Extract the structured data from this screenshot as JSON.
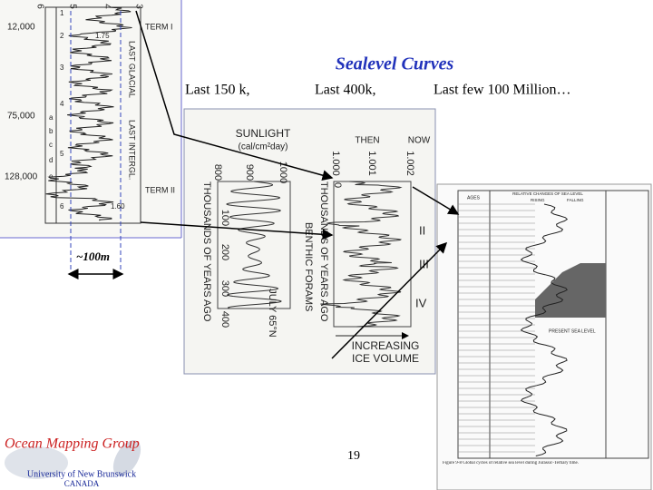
{
  "title": "Sealevel Curves",
  "subtitles": [
    "Last 150 k,",
    "Last 400k,",
    "Last few 100 Million…"
  ],
  "annotation": "~100m",
  "page_number": "19",
  "logo": {
    "name": "Ocean Mapping Group",
    "university": "University of New Brunswick",
    "country": "CANADA"
  },
  "figure_1": {
    "scale": [
      "6",
      "5",
      "4",
      "3"
    ],
    "ages": [
      "12,000",
      "75,000",
      "128,000"
    ],
    "terms": [
      "TERM I",
      "TERM II"
    ],
    "periods": [
      "LAST GLACIAL",
      "LAST INTERGL."
    ],
    "stages": [
      "1",
      "2",
      "3",
      "4",
      "a",
      "b",
      "c",
      "d",
      "e",
      "5",
      "6"
    ],
    "values": [
      "1.75",
      "1.60"
    ]
  },
  "figure_2": {
    "sunlight": "SUNLIGHT",
    "sunlight_unit": "(cal/cm²day)",
    "sunlight_ticks": [
      "800",
      "900",
      "1000"
    ],
    "isotope_ticks": [
      "1.000",
      "1.001",
      "1.002"
    ],
    "then": "THEN",
    "now": "NOW",
    "time_ticks": [
      "0",
      "100",
      "200",
      "300",
      "400"
    ],
    "time_label": "THOUSANDS OF YEARS AGO",
    "july": "JULY 65°N",
    "forams": "BENTHIC FORAMS",
    "terminations": [
      "II",
      "III",
      "IV"
    ],
    "ice_volume": [
      "INCREASING",
      "ICE VOLUME"
    ]
  },
  "figure_3": {
    "ages_header": "AGES",
    "header": "RELATIVE CHANGES OF SEA LEVEL",
    "rising": "RISING",
    "falling": "FALLING",
    "present": "PRESENT SEA LEVEL",
    "caption": "Figure 9-8 Global cycles of relative sea level during Jurassic-Tertiary time."
  }
}
